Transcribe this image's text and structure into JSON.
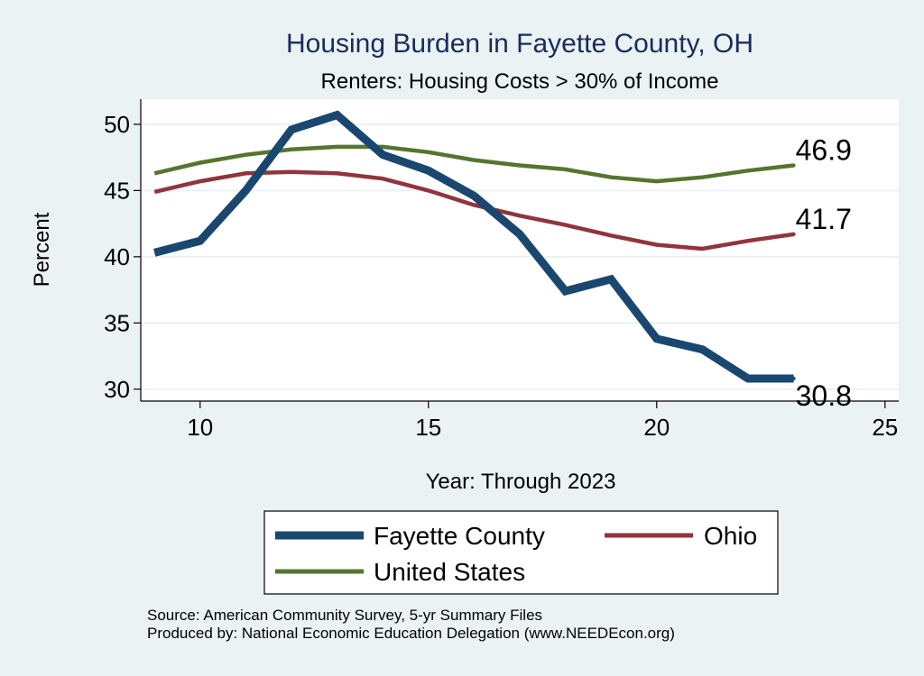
{
  "chart_data": {
    "type": "line",
    "title": "Housing Burden in Fayette County, OH",
    "subtitle": "Renters: Housing Costs > 30% of Income",
    "xlabel": "Year: Through 2023",
    "ylabel": "Percent",
    "xlim": [
      8.7,
      25.3
    ],
    "ylim": [
      29.1,
      51.9
    ],
    "xticks": [
      10,
      15,
      20,
      25
    ],
    "yticks": [
      30,
      35,
      40,
      45,
      50
    ],
    "grid": true,
    "legend_position": "bottom",
    "series": [
      {
        "name": "Fayette County",
        "color": "#1a476f",
        "width": "thick",
        "x": [
          9,
          10,
          11,
          12,
          13,
          14,
          15,
          16,
          17,
          18,
          19,
          20,
          21,
          22,
          23
        ],
        "y": [
          40.3,
          41.2,
          45.0,
          49.6,
          50.7,
          47.7,
          46.5,
          44.6,
          41.7,
          37.4,
          38.3,
          33.8,
          33.0,
          30.8,
          30.8
        ],
        "end_label": "30.8"
      },
      {
        "name": "Ohio",
        "color": "#90353b",
        "width": "medium",
        "x": [
          9,
          10,
          11,
          12,
          13,
          14,
          15,
          16,
          17,
          18,
          19,
          20,
          21,
          22,
          23
        ],
        "y": [
          44.9,
          45.7,
          46.3,
          46.4,
          46.3,
          45.9,
          45.0,
          43.9,
          43.1,
          42.4,
          41.6,
          40.9,
          40.6,
          41.2,
          41.7
        ],
        "end_label": "41.7"
      },
      {
        "name": "United States",
        "color": "#55752f",
        "width": "medium",
        "x": [
          9,
          10,
          11,
          12,
          13,
          14,
          15,
          16,
          17,
          18,
          19,
          20,
          21,
          22,
          23
        ],
        "y": [
          46.3,
          47.1,
          47.7,
          48.1,
          48.3,
          48.3,
          47.9,
          47.3,
          46.9,
          46.6,
          46.0,
          45.7,
          46.0,
          46.5,
          46.9
        ],
        "end_label": "46.9"
      }
    ],
    "notes": [
      "Source: American Community Survey, 5-yr Summary Files",
      "Produced by: National Economic Education Delegation (www.NEEDEcon.org)"
    ]
  }
}
